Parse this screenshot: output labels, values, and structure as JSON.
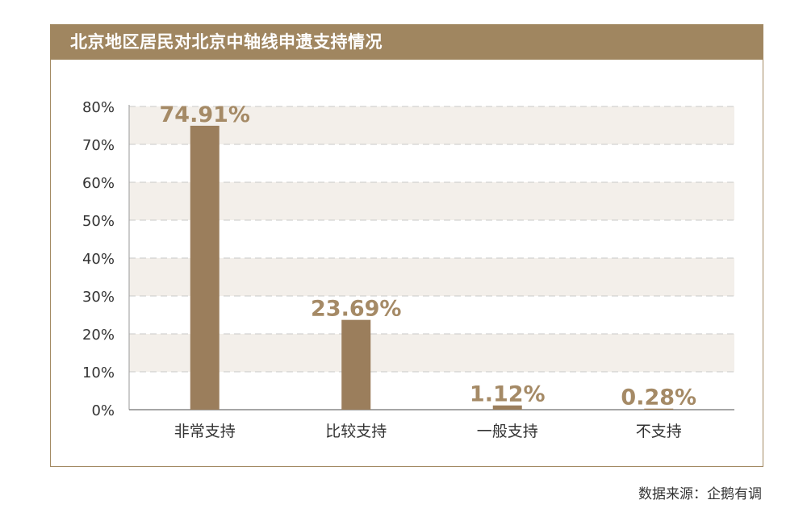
{
  "header": {
    "title": "北京地区居民对北京中轴线申遗支持情况"
  },
  "source": "数据来源：企鹅有调",
  "colors": {
    "bar": "#9b7e5c",
    "label": "#a58a66",
    "band": "#f3efea",
    "grid": "#c8c8c8",
    "header_bg": "#a08660"
  },
  "chart_data": {
    "type": "bar",
    "title": "北京地区居民对北京中轴线申遗支持情况",
    "xlabel": "",
    "ylabel": "",
    "categories": [
      "非常支持",
      "比较支持",
      "一般支持",
      "不支持"
    ],
    "values": [
      74.91,
      23.69,
      1.12,
      0.28
    ],
    "value_labels": [
      "74.91%",
      "23.69%",
      "1.12%",
      "0.28%"
    ],
    "ylim": [
      0,
      80
    ],
    "yticks": [
      0,
      10,
      20,
      30,
      40,
      50,
      60,
      70,
      80
    ],
    "ytick_labels": [
      "0%",
      "10%",
      "20%",
      "30%",
      "40%",
      "50%",
      "60%",
      "70%",
      "80%"
    ],
    "grid": true,
    "legend": "none"
  }
}
